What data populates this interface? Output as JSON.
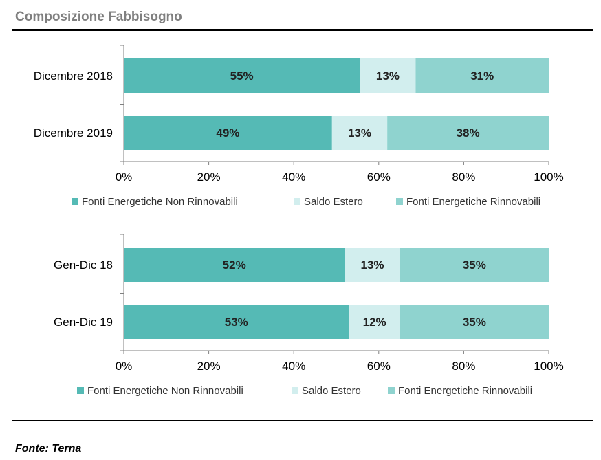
{
  "title": "Composizione Fabbisogno",
  "source": "Fonte: Terna",
  "colors": {
    "non_rinnovabili": "#55bab5",
    "saldo_estero": "#d2eeee",
    "rinnovabili": "#8fd3cf",
    "axis": "#808080"
  },
  "chart_data": [
    {
      "type": "bar",
      "orientation": "horizontal",
      "stacked": true,
      "categories": [
        "Dicembre 2018",
        "Dicembre 2019"
      ],
      "series": [
        {
          "name": "Fonti Energetiche Non Rinnovabili",
          "values": [
            55,
            49
          ],
          "labels": [
            "55%",
            "49%"
          ]
        },
        {
          "name": "Saldo Estero",
          "values": [
            13,
            13
          ],
          "labels": [
            "13%",
            "13%"
          ]
        },
        {
          "name": "Fonti Energetiche Rinnovabili",
          "values": [
            31,
            38
          ],
          "labels": [
            "31%",
            "38%"
          ]
        }
      ],
      "xlim": [
        0,
        100
      ],
      "xticks": [
        "0%",
        "20%",
        "40%",
        "60%",
        "80%",
        "100%"
      ],
      "legend": "bottom"
    },
    {
      "type": "bar",
      "orientation": "horizontal",
      "stacked": true,
      "categories": [
        "Gen-Dic 18",
        "Gen-Dic 19"
      ],
      "series": [
        {
          "name": "Fonti Energetiche Non Rinnovabili",
          "values": [
            52,
            53
          ],
          "labels": [
            "52%",
            "53%"
          ]
        },
        {
          "name": "Saldo Estero",
          "values": [
            13,
            12
          ],
          "labels": [
            "13%",
            "12%"
          ]
        },
        {
          "name": "Fonti Energetiche Rinnovabili",
          "values": [
            35,
            35
          ],
          "labels": [
            "35%",
            "35%"
          ]
        }
      ],
      "xlim": [
        0,
        100
      ],
      "xticks": [
        "0%",
        "20%",
        "40%",
        "60%",
        "80%",
        "100%"
      ],
      "legend": "bottom"
    }
  ]
}
